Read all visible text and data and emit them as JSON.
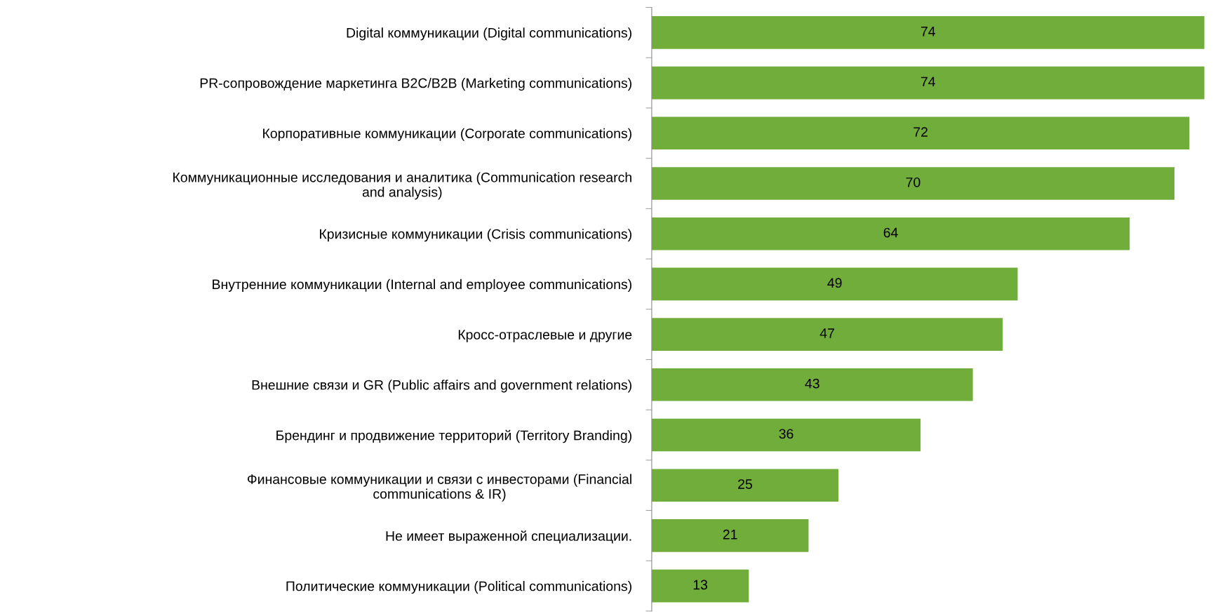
{
  "chart_data": {
    "type": "bar",
    "orientation": "horizontal",
    "categories": [
      "Digital коммуникации (Digital communications)",
      "PR-сопровождение маркетинга B2C/B2B (Marketing communications)",
      "Корпоративные коммуникации (Corporate communications)",
      "Коммуникационные исследования и аналитика (Communication research\nand analysis)",
      "Кризисные коммуникации (Crisis communications)",
      "Внутренние коммуникации (Internal and employee communications)",
      "Кросс-отраслевые и другие",
      "Внешние связи и GR (Public affairs and government relations)",
      "Брендинг и продвижение территорий (Territory Branding)",
      "Финансовые коммуникации и связи с инвесторами (Financial\ncommunications & IR)",
      "Не имеет выраженной специализации.",
      "Политические коммуникации (Political communications)"
    ],
    "values": [
      74,
      74,
      72,
      70,
      64,
      49,
      47,
      43,
      36,
      25,
      21,
      13
    ],
    "color": "#70ad3b",
    "data_labels": true,
    "tick_labels": "y",
    "grid": false
  }
}
